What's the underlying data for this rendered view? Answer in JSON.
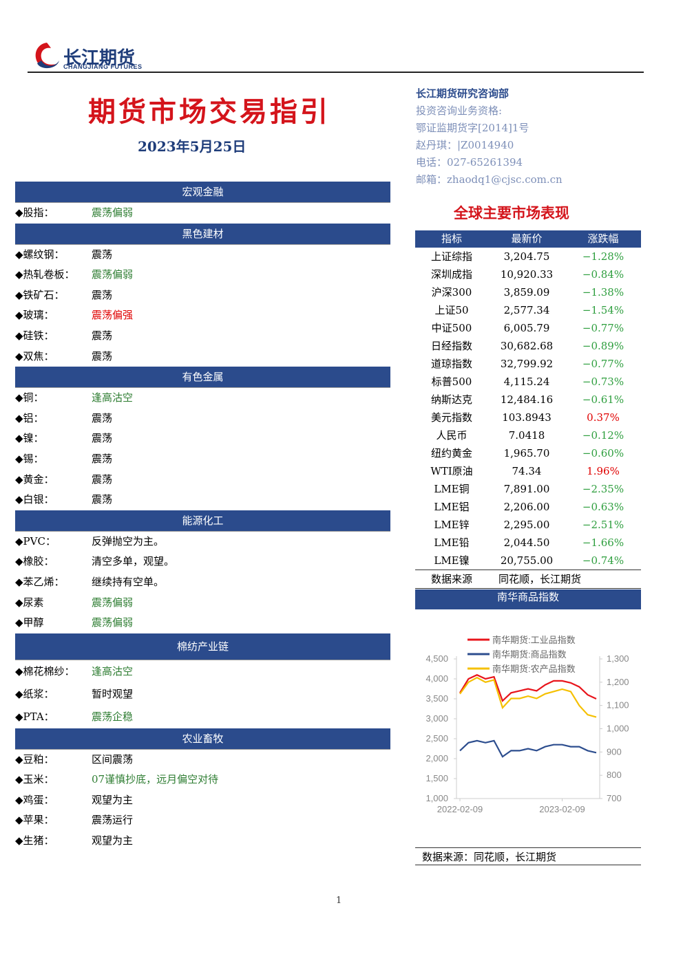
{
  "header": {
    "logo_cn": "长江期货",
    "logo_en": "CHANGJIANG FUTURES",
    "title": "期货市场交易指引",
    "date": "2023年5月25日"
  },
  "contact": [
    "长江期货研究咨询部",
    "投资咨询业务资格:",
    "鄂证监期货字[2014]1号",
    "赵丹琪：|Z0014940",
    "电话：027-65261394",
    "邮箱：zhaodq1@cjsc.com.cn"
  ],
  "sections": [
    {
      "title": "宏观金融",
      "items": [
        {
          "name": "◆股指：",
          "view": "震荡偏弱",
          "color": "#2e7d32"
        }
      ]
    },
    {
      "title": "黑色建材",
      "items": [
        {
          "name": "◆螺纹钢：",
          "view": "震荡",
          "color": "#000000"
        },
        {
          "name": "◆热轧卷板：",
          "view": "震荡偏弱",
          "color": "#2e7d32"
        },
        {
          "name": "◆铁矿石：",
          "view": "震荡",
          "color": "#000000"
        },
        {
          "name": "◆玻璃：",
          "view": "震荡偏强",
          "color": "#e00000"
        },
        {
          "name": "◆硅铁：",
          "view": "震荡",
          "color": "#000000"
        },
        {
          "name": "◆双焦：",
          "view": "震荡",
          "color": "#000000"
        }
      ]
    },
    {
      "title": "有色金属",
      "items": [
        {
          "name": "◆铜：",
          "view": "逢高沽空",
          "color": "#2e7d32"
        },
        {
          "name": "◆铝：",
          "view": "震荡",
          "color": "#000000"
        },
        {
          "name": "◆镍：",
          "view": "震荡",
          "color": "#000000"
        },
        {
          "name": "◆锡：",
          "view": "震荡",
          "color": "#000000"
        },
        {
          "name": "◆黄金：",
          "view": "震荡",
          "color": "#000000"
        },
        {
          "name": "◆白银：",
          "view": "震荡",
          "color": "#000000"
        }
      ]
    },
    {
      "title": "能源化工",
      "items": [
        {
          "name": "◆PVC：",
          "view": "反弹抛空为主。",
          "color": "#000000"
        },
        {
          "name": "◆橡胶：",
          "view": "清空多单，观望。",
          "color": "#000000"
        },
        {
          "name": "◆苯乙烯：",
          "view": "继续持有空单。",
          "color": "#000000"
        },
        {
          "name": "◆尿素",
          "view": "震荡偏弱",
          "color": "#2e7d32"
        },
        {
          "name": "◆甲醇",
          "view": "震荡偏弱",
          "color": "#2e7d32"
        }
      ]
    },
    {
      "title": "棉纺产业链",
      "items": [
        {
          "name": "◆棉花棉纱：",
          "view": "逢高沽空",
          "color": "#2e7d32"
        },
        {
          "name": "◆纸浆：",
          "view": "暂时观望",
          "color": "#000000"
        },
        {
          "name": "◆PTA：",
          "view": "震荡企稳",
          "color": "#2e7d32"
        }
      ]
    },
    {
      "title": "农业畜牧",
      "items": [
        {
          "name": "◆豆粕：",
          "view": "区间震荡",
          "color": "#000000"
        },
        {
          "name": "◆玉米：",
          "view": "07谨慎抄底，远月偏空对待",
          "color": "#2e7d32"
        },
        {
          "name": "◆鸡蛋：",
          "view": "观望为主",
          "color": "#000000"
        },
        {
          "name": "◆苹果：",
          "view": "震荡运行",
          "color": "#000000"
        },
        {
          "name": "◆生猪：",
          "view": "观望为主",
          "color": "#000000"
        }
      ]
    }
  ],
  "market": {
    "title": "全球主要市场表现",
    "headers": [
      "指标",
      "最新价",
      "涨跌幅"
    ],
    "rows": [
      [
        "上证综指",
        "3,204.75",
        "−1.28%"
      ],
      [
        "深圳成指",
        "10,920.33",
        "−0.84%"
      ],
      [
        "沪深300",
        "3,859.09",
        "−1.38%"
      ],
      [
        "上证50",
        "2,577.34",
        "−1.54%"
      ],
      [
        "中证500",
        "6,005.79",
        "−0.77%"
      ],
      [
        "日经指数",
        "30,682.68",
        "−0.89%"
      ],
      [
        "道琼指数",
        "32,799.92",
        "−0.77%"
      ],
      [
        "标普500",
        "4,115.24",
        "−0.73%"
      ],
      [
        "纳斯达克",
        "12,484.16",
        "−0.61%"
      ],
      [
        "美元指数",
        "103.8943",
        "0.37%"
      ],
      [
        "人民币",
        "7.0418",
        "−0.12%"
      ],
      [
        "纽约黄金",
        "1,965.70",
        "−0.60%"
      ],
      [
        "WTI原油",
        "74.34",
        "1.96%"
      ],
      [
        "LME铜",
        "7,891.00",
        "−2.35%"
      ],
      [
        "LME铝",
        "2,206.00",
        "−0.63%"
      ],
      [
        "LME锌",
        "2,295.00",
        "−2.51%"
      ],
      [
        "LME铅",
        "2,044.50",
        "−1.66%"
      ],
      [
        "LME镍",
        "20,755.00",
        "−0.74%"
      ]
    ],
    "source": [
      "数据来源",
      "同花顺，长江期货"
    ]
  },
  "chart_section": {
    "title": "南华商品指数",
    "source": "数据来源：同花顺，长江期货"
  },
  "chart_data": {
    "type": "line",
    "categories": [
      "2022-02-09",
      null,
      null,
      null,
      null,
      null,
      null,
      null,
      null,
      null,
      null,
      null,
      "2023-02-09",
      null,
      null,
      null,
      null
    ],
    "series": [
      {
        "name": "南华期货:工业品指数",
        "color": "#e8141b",
        "values": [
          3650,
          4000,
          4100,
          4000,
          4050,
          3450,
          3650,
          3700,
          3750,
          3700,
          3850,
          3950,
          3950,
          3900,
          3800,
          3600,
          3500
        ]
      },
      {
        "name": "南华期货:商品指数",
        "color": "#2c4d8e",
        "values": [
          2200,
          2400,
          2450,
          2400,
          2450,
          2050,
          2200,
          2200,
          2250,
          2200,
          2300,
          2350,
          2350,
          2300,
          2300,
          2200,
          2150
        ]
      },
      {
        "name": "南华期货:农产品指数",
        "color": "#f5c000",
        "axis": "y2",
        "values": [
          1150,
          1200,
          1220,
          1200,
          1210,
          1090,
          1130,
          1130,
          1140,
          1130,
          1150,
          1160,
          1170,
          1160,
          1100,
          1060,
          1050
        ]
      }
    ],
    "ylim": [
      1000,
      4500
    ],
    "yticks": [
      {
        "value": 1000,
        "label": "1,000"
      },
      {
        "value": 1500,
        "label": "1,500"
      },
      {
        "value": 2000,
        "label": "2,000"
      },
      {
        "value": 2500,
        "label": "2,500"
      },
      {
        "value": 3000,
        "label": "3,000"
      },
      {
        "value": 3500,
        "label": "3,500"
      },
      {
        "value": 4000,
        "label": "4,000"
      },
      {
        "value": 4500,
        "label": "4,500"
      }
    ],
    "y2lim": [
      700,
      1300
    ],
    "y2ticks": [
      {
        "value": 700,
        "label": "700"
      },
      {
        "value": 800,
        "label": "800"
      },
      {
        "value": 900,
        "label": "900"
      },
      {
        "value": 1000,
        "label": "1,000"
      },
      {
        "value": 1100,
        "label": "1,100"
      },
      {
        "value": 1200,
        "label": "1,200"
      },
      {
        "value": 1300,
        "label": "1,300"
      }
    ]
  },
  "page_number": "1"
}
